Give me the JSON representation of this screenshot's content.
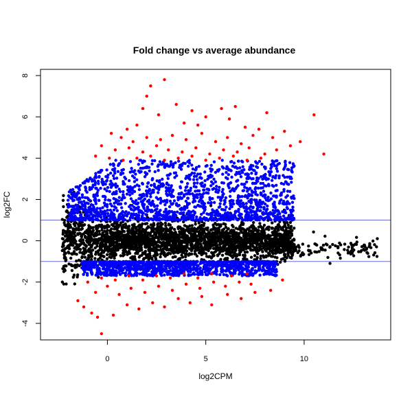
{
  "chart_data": {
    "type": "scatter",
    "title": "Fold change vs average abundance",
    "xlabel": "log2CPM",
    "ylabel": "log2FC",
    "xlim": [
      -3.4,
      14.4
    ],
    "ylim": [
      -4.8,
      8.3
    ],
    "xticks": [
      0,
      5,
      10
    ],
    "yticks": [
      -4,
      -2,
      0,
      2,
      4,
      6,
      8
    ],
    "hlines": [
      1,
      -1
    ],
    "hline_color": "#6b6bd6",
    "grid": false,
    "legend": "none",
    "colors": {
      "not_significant": "#000000",
      "significant": "#0000ff",
      "significant_large_fold_change": "#ff0000"
    },
    "series": [
      {
        "color_key": "significant_large_fold_change",
        "points": [
          [
            2.9,
            7.8
          ],
          [
            2.2,
            7.5
          ],
          [
            2.0,
            7.0
          ],
          [
            1.8,
            6.4
          ],
          [
            3.5,
            6.6
          ],
          [
            4.3,
            6.3
          ],
          [
            5.0,
            6.0
          ],
          [
            5.8,
            6.4
          ],
          [
            6.5,
            6.5
          ],
          [
            8.1,
            6.2
          ],
          [
            10.5,
            6.1
          ],
          [
            2.6,
            6.1
          ],
          [
            1.0,
            5.4
          ],
          [
            1.5,
            5.6
          ],
          [
            3.9,
            5.7
          ],
          [
            4.6,
            5.6
          ],
          [
            6.2,
            5.9
          ],
          [
            7.0,
            5.5
          ],
          [
            7.7,
            5.4
          ],
          [
            9.0,
            5.3
          ],
          [
            0.2,
            5.2
          ],
          [
            0.7,
            5.0
          ],
          [
            1.3,
            4.8
          ],
          [
            2.0,
            5.0
          ],
          [
            2.7,
            4.9
          ],
          [
            3.3,
            5.1
          ],
          [
            4.0,
            4.9
          ],
          [
            4.8,
            5.2
          ],
          [
            5.5,
            4.8
          ],
          [
            6.1,
            5.0
          ],
          [
            6.8,
            4.7
          ],
          [
            7.4,
            5.1
          ],
          [
            8.4,
            5.0
          ],
          [
            9.8,
            4.8
          ],
          [
            11.0,
            4.2
          ],
          [
            -0.3,
            4.6
          ],
          [
            0.4,
            4.4
          ],
          [
            1.1,
            4.5
          ],
          [
            1.8,
            4.3
          ],
          [
            2.5,
            4.6
          ],
          [
            3.1,
            4.4
          ],
          [
            3.8,
            4.3
          ],
          [
            4.5,
            4.5
          ],
          [
            5.2,
            4.2
          ],
          [
            5.9,
            4.4
          ],
          [
            6.6,
            4.3
          ],
          [
            7.2,
            4.5
          ],
          [
            8.0,
            4.2
          ],
          [
            8.6,
            4.4
          ],
          [
            9.3,
            4.6
          ],
          [
            -0.6,
            4.1
          ],
          [
            0.1,
            4.0
          ],
          [
            0.8,
            3.9
          ],
          [
            1.5,
            4.0
          ],
          [
            2.2,
            4.1
          ],
          [
            2.9,
            3.9
          ],
          [
            3.6,
            4.0
          ],
          [
            4.3,
            4.1
          ],
          [
            5.0,
            3.9
          ],
          [
            5.7,
            4.0
          ],
          [
            6.4,
            4.1
          ],
          [
            7.1,
            3.9
          ],
          [
            7.8,
            4.0
          ],
          [
            -1.5,
            -2.9
          ],
          [
            -1.2,
            -3.2
          ],
          [
            -0.8,
            -3.5
          ],
          [
            -0.5,
            -3.7
          ],
          [
            -0.3,
            -4.5
          ],
          [
            0.3,
            -3.6
          ],
          [
            1.0,
            -3.1
          ],
          [
            1.6,
            -3.3
          ],
          [
            2.3,
            -3.0
          ],
          [
            2.9,
            -3.2
          ],
          [
            3.6,
            -2.8
          ],
          [
            4.2,
            -3.0
          ],
          [
            4.8,
            -2.7
          ],
          [
            5.3,
            -3.1
          ],
          [
            6.1,
            -2.6
          ],
          [
            6.8,
            -2.8
          ],
          [
            7.5,
            -2.5
          ],
          [
            8.3,
            -2.4
          ],
          [
            -0.6,
            -2.5
          ],
          [
            0.0,
            -2.2
          ],
          [
            0.6,
            -2.6
          ],
          [
            1.2,
            -2.3
          ],
          [
            1.9,
            -2.5
          ],
          [
            2.6,
            -2.2
          ],
          [
            3.3,
            -2.4
          ],
          [
            4.0,
            -2.1
          ],
          [
            4.7,
            -2.3
          ],
          [
            5.4,
            -2.0
          ],
          [
            6.0,
            -2.2
          ],
          [
            6.7,
            -2.0
          ],
          [
            7.3,
            -2.1
          ],
          [
            -1.0,
            -2.0
          ],
          [
            -0.3,
            -1.8
          ],
          [
            0.4,
            -1.9
          ],
          [
            1.1,
            -1.7
          ],
          [
            1.8,
            -1.9
          ],
          [
            2.5,
            -1.7
          ],
          [
            3.2,
            -1.8
          ],
          [
            3.9,
            -1.6
          ],
          [
            4.6,
            -1.8
          ],
          [
            5.3,
            -1.6
          ],
          [
            6.3,
            -1.7
          ],
          [
            7.1,
            -1.6
          ],
          [
            8.9,
            -1.9
          ]
        ]
      }
    ],
    "density_model": [
      {
        "color_key": "not_significant",
        "xrange": [
          -2.3,
          9.5
        ],
        "center": 0.0,
        "spread": 0.45,
        "count": 2600
      },
      {
        "color_key": "not_significant",
        "xrange": [
          9.0,
          13.8
        ],
        "center": -0.4,
        "spread": 0.25,
        "count": 110
      },
      {
        "color_key": "significant",
        "xrange": [
          -2.0,
          9.5
        ],
        "band": [
          1.0,
          3.9
        ],
        "count": 1600
      },
      {
        "color_key": "significant",
        "xrange": [
          -1.3,
          8.6
        ],
        "band": [
          -1.0,
          -1.7
        ],
        "count": 1100
      }
    ]
  }
}
